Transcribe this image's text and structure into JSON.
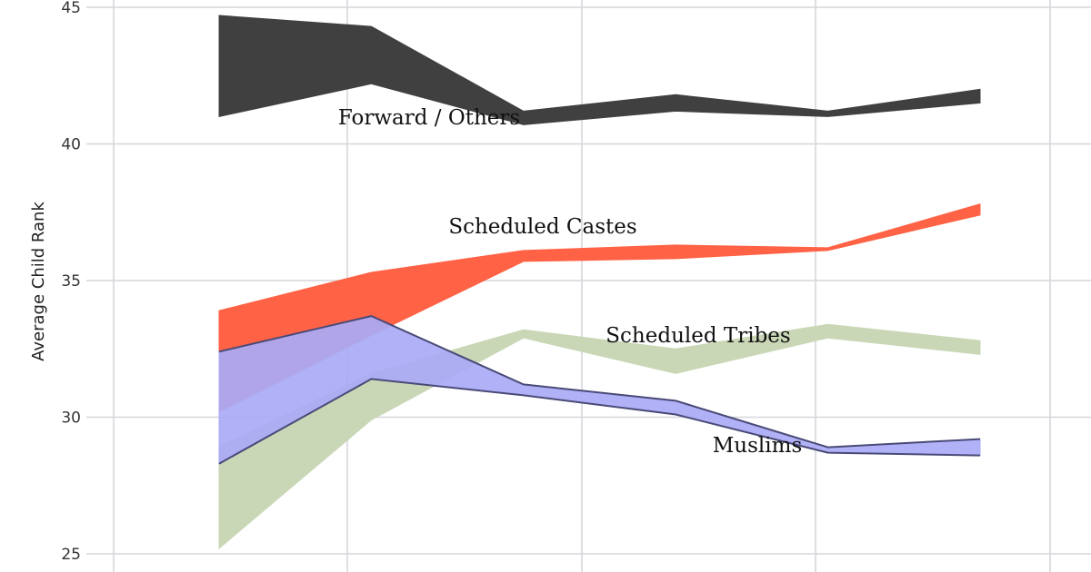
{
  "chart_data": {
    "type": "area",
    "title": "",
    "xlabel": "",
    "ylabel": "Average Child Rank",
    "ylim": [
      25,
      45
    ],
    "y_ticks": [
      "25",
      "30",
      "35",
      "40",
      "45"
    ],
    "x_index": [
      0,
      1,
      2,
      3,
      4,
      5
    ],
    "grid": true,
    "legend": "none",
    "series": [
      {
        "name": "Forward / Others",
        "color": "#404040",
        "upper": [
          44.7,
          44.3,
          41.2,
          41.8,
          41.2,
          42.0
        ],
        "lower": [
          41.0,
          42.2,
          40.7,
          41.2,
          41.0,
          41.5
        ]
      },
      {
        "name": "Scheduled Castes",
        "color": "#ff6245",
        "upper": [
          33.9,
          35.3,
          36.1,
          36.3,
          36.2,
          37.8
        ],
        "lower": [
          30.2,
          33.0,
          35.7,
          35.8,
          36.1,
          37.4
        ]
      },
      {
        "name": "Scheduled Tribes",
        "color": "#c9d7b6",
        "upper": [
          28.9,
          31.6,
          33.2,
          32.5,
          33.4,
          32.8
        ],
        "lower": [
          25.2,
          29.9,
          32.9,
          31.6,
          32.9,
          32.3
        ]
      },
      {
        "name": "Muslims",
        "color": "#a9aaf6",
        "line_color": "#4a4a78",
        "upper": [
          32.4,
          33.7,
          31.2,
          30.6,
          28.9,
          29.2
        ],
        "lower": [
          28.3,
          31.4,
          30.8,
          30.1,
          28.7,
          28.6
        ]
      }
    ]
  }
}
